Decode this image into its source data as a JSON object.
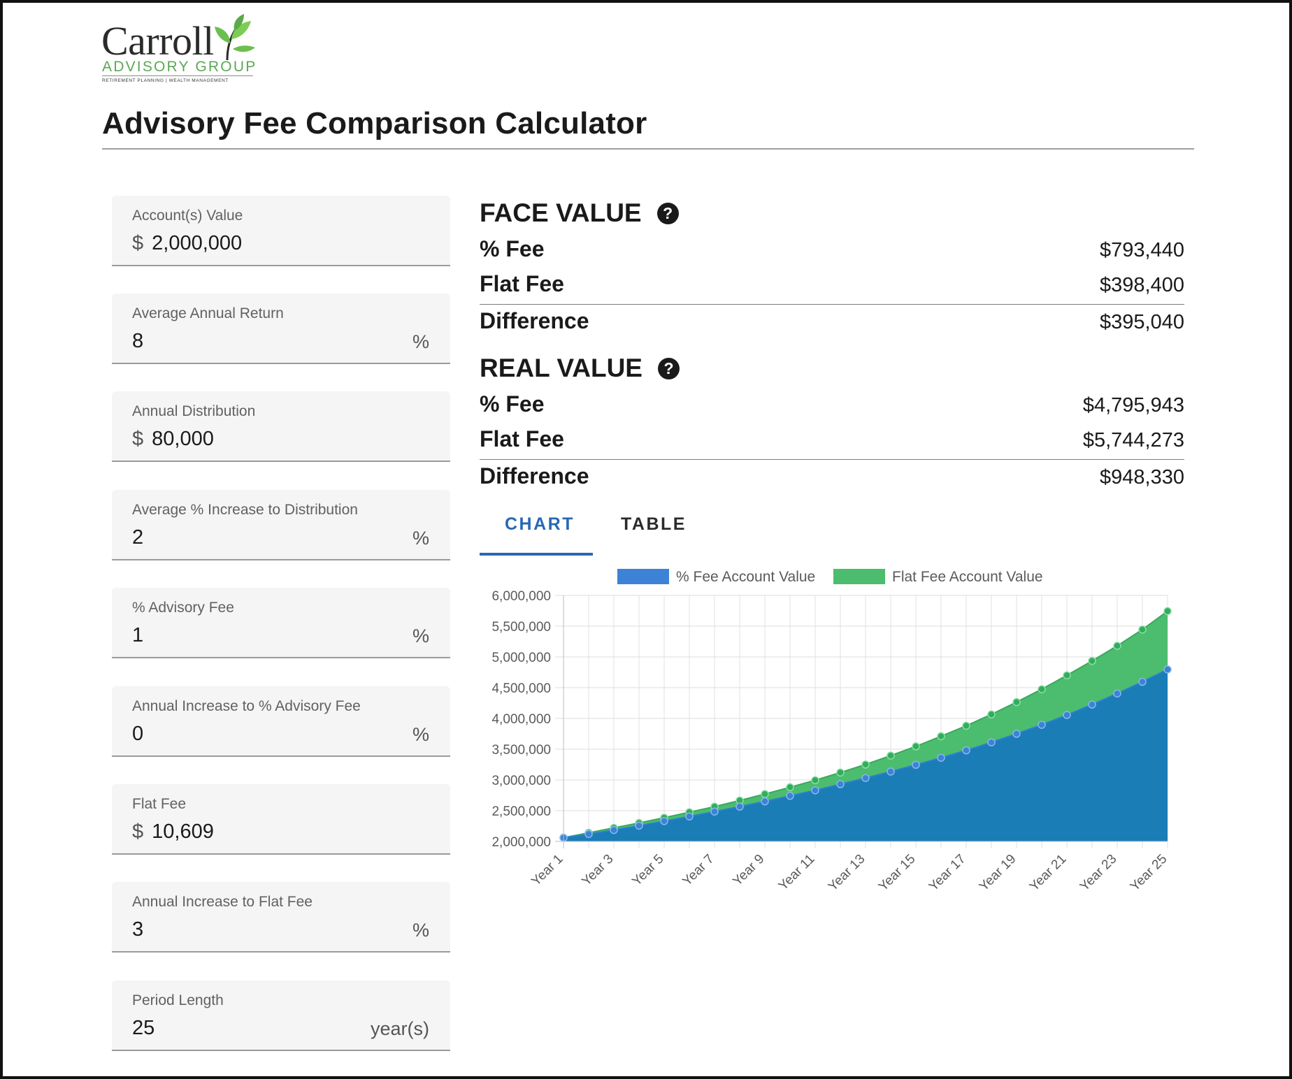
{
  "logo": {
    "name": "Carroll",
    "sub": "ADVISORY GROUP",
    "tagline": "RETIREMENT PLANNING | WEALTH MANAGEMENT"
  },
  "title": "Advisory Fee Comparison Calculator",
  "form": [
    {
      "label": "Account(s) Value",
      "prefix": "$",
      "value": "2,000,000",
      "suffix": ""
    },
    {
      "label": "Average Annual Return",
      "prefix": "",
      "value": "8",
      "suffix": "%"
    },
    {
      "label": "Annual Distribution",
      "prefix": "$",
      "value": "80,000",
      "suffix": ""
    },
    {
      "label": "Average % Increase to Distribution",
      "prefix": "",
      "value": "2",
      "suffix": "%"
    },
    {
      "label": "% Advisory Fee",
      "prefix": "",
      "value": "1",
      "suffix": "%"
    },
    {
      "label": "Annual Increase to % Advisory Fee",
      "prefix": "",
      "value": "0",
      "suffix": "%"
    },
    {
      "label": "Flat Fee",
      "prefix": "$",
      "value": "10,609",
      "suffix": ""
    },
    {
      "label": "Annual Increase to Flat Fee",
      "prefix": "",
      "value": "3",
      "suffix": "%"
    },
    {
      "label": "Period Length",
      "prefix": "",
      "value": "25",
      "suffix": "year(s)"
    }
  ],
  "face_value": {
    "heading": "FACE VALUE",
    "help_icon": "question-circle-icon",
    "pct_fee_label": "% Fee",
    "pct_fee": "$793,440",
    "flat_fee_label": "Flat Fee",
    "flat_fee": "$398,400",
    "diff_label": "Difference",
    "diff": "$395,040"
  },
  "real_value": {
    "heading": "REAL VALUE",
    "help_icon": "question-circle-icon",
    "pct_fee_label": "% Fee",
    "pct_fee": "$4,795,943",
    "flat_fee_label": "Flat Fee",
    "flat_fee": "$5,744,273",
    "diff_label": "Difference",
    "diff": "$948,330"
  },
  "tabs": {
    "chart": "CHART",
    "table": "TABLE",
    "active": "chart"
  },
  "colors": {
    "pct_fee_fill": "#1a7db6",
    "pct_fee_point": "#3c82d6",
    "flat_fee_fill": "#4cbd6e",
    "flat_fee_point": "#2fae5b",
    "accent": "#2868b5"
  },
  "chart_data": {
    "type": "area",
    "stacked": false,
    "legend_position": "top",
    "grid": true,
    "ylim": [
      2000000,
      6000000
    ],
    "y_ticks": [
      "2,000,000",
      "2,500,000",
      "3,000,000",
      "3,500,000",
      "4,000,000",
      "4,500,000",
      "5,000,000",
      "5,500,000",
      "6,000,000"
    ],
    "x": [
      "Year 1",
      "Year 2",
      "Year 3",
      "Year 4",
      "Year 5",
      "Year 6",
      "Year 7",
      "Year 8",
      "Year 9",
      "Year 10",
      "Year 11",
      "Year 12",
      "Year 13",
      "Year 14",
      "Year 15",
      "Year 16",
      "Year 17",
      "Year 18",
      "Year 19",
      "Year 20",
      "Year 21",
      "Year 22",
      "Year 23",
      "Year 24",
      "Year 25"
    ],
    "x_tick_labels_shown": [
      "Year 1",
      "Year 3",
      "Year 5",
      "Year 7",
      "Year 9",
      "Year 11",
      "Year 13",
      "Year 15",
      "Year 17",
      "Year 19",
      "Year 21",
      "Year 23",
      "Year 25"
    ],
    "series": [
      {
        "name": "% Fee Account Value",
        "values": [
          2060000,
          2120000,
          2185000,
          2255000,
          2330000,
          2405000,
          2485000,
          2565000,
          2650000,
          2740000,
          2830000,
          2930000,
          3030000,
          3135000,
          3245000,
          3360000,
          3480000,
          3610000,
          3750000,
          3895000,
          4055000,
          4225000,
          4405000,
          4595000,
          4796000
        ]
      },
      {
        "name": "Flat Fee Account Value",
        "values": [
          2060000,
          2140000,
          2220000,
          2300000,
          2385000,
          2475000,
          2565000,
          2665000,
          2770000,
          2880000,
          2995000,
          3120000,
          3250000,
          3395000,
          3545000,
          3710000,
          3880000,
          4065000,
          4265000,
          4475000,
          4700000,
          4935000,
          5180000,
          5445000,
          5744000
        ]
      }
    ]
  }
}
